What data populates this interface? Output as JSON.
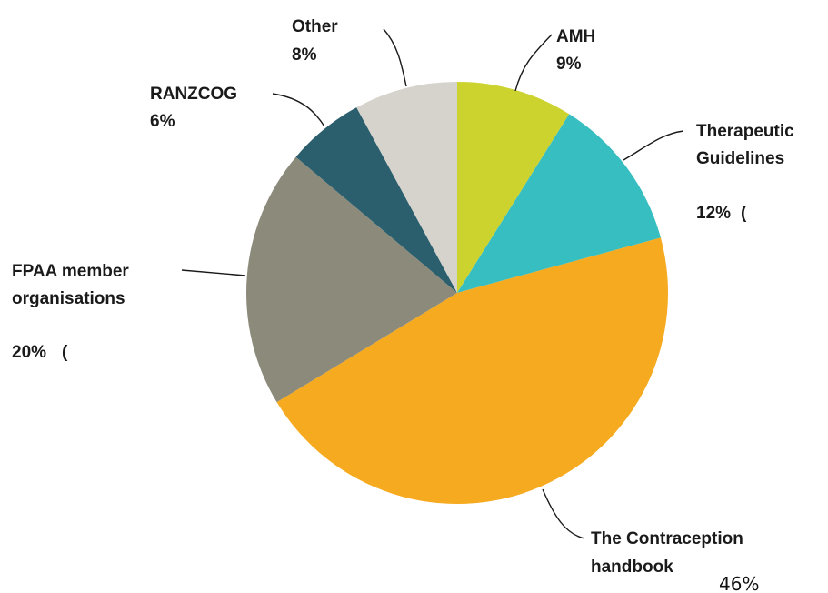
{
  "chart_data": {
    "type": "pie",
    "start": "12 o'clock, clockwise",
    "slices": [
      {
        "label": "AMH",
        "value": 9,
        "value_label": "9%",
        "color": "#cdd32e"
      },
      {
        "label": "Therapeutic Guidelines",
        "value": 12,
        "value_label": "12%",
        "color": "#37bec1"
      },
      {
        "label": "The Contraception handbook",
        "value": 46,
        "value_label": "46%",
        "color": "#f5aa1f"
      },
      {
        "label": "FPAA member organisations",
        "value": 20,
        "value_label": "20%",
        "color": "#8c8a7a"
      },
      {
        "label": "RANZCOG",
        "value": 6,
        "value_label": "6%",
        "color": "#2c5f6e"
      },
      {
        "label": "Other",
        "value": 8,
        "value_label": "8%",
        "color": "#d5d3cb"
      }
    ],
    "label_lines": {
      "amh": [
        "AMH"
      ],
      "therapeutic": [
        "Therapeutic",
        "Guidelines"
      ],
      "contraception": [
        "The Contraception",
        "handbook"
      ],
      "fpaa": [
        "FPAA member",
        "organisations"
      ],
      "ranzcog": [
        "RANZCOG"
      ],
      "other": [
        "Other"
      ]
    },
    "artifact_glyph": "(",
    "colors": {
      "text": "#1a1a1a",
      "background": "#ffffff"
    }
  }
}
